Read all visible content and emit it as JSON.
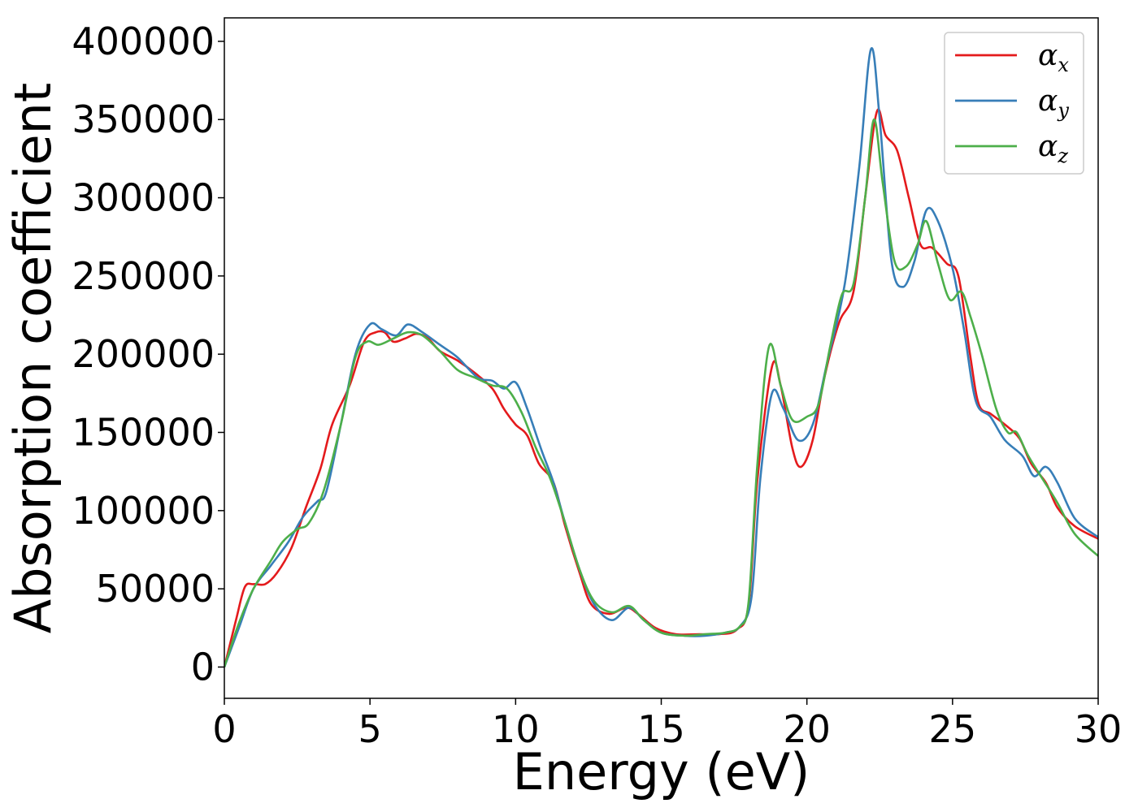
{
  "chart_data": {
    "type": "line",
    "title": "",
    "xlabel": "Energy (eV)",
    "ylabel": "Absorption coefficient",
    "xlim": [
      0,
      30
    ],
    "ylim": [
      -20000,
      415000
    ],
    "xticks": [
      "0",
      "5",
      "10",
      "15",
      "20",
      "25",
      "30"
    ],
    "yticks": [
      "0",
      "50000",
      "100000",
      "150000",
      "200000",
      "250000",
      "300000",
      "350000",
      "400000"
    ],
    "grid": false,
    "legend_position": "top-right",
    "colors": {
      "alpha_x": "#e41a1c",
      "alpha_y": "#377eb8",
      "alpha_z": "#4daf4a"
    },
    "series": [
      {
        "name": "α_x",
        "legend_base": "α",
        "legend_sub": "x",
        "color": "#e41a1c",
        "points": [
          [
            0,
            0
          ],
          [
            0.4,
            30000
          ],
          [
            0.7,
            51000
          ],
          [
            1.0,
            53000
          ],
          [
            1.4,
            53000
          ],
          [
            1.8,
            60000
          ],
          [
            2.3,
            76000
          ],
          [
            2.8,
            102000
          ],
          [
            3.3,
            127000
          ],
          [
            3.7,
            155000
          ],
          [
            4.3,
            180000
          ],
          [
            4.8,
            208000
          ],
          [
            5.2,
            214000
          ],
          [
            5.5,
            214000
          ],
          [
            5.8,
            208000
          ],
          [
            6.2,
            210000
          ],
          [
            6.6,
            213000
          ],
          [
            7.0,
            210000
          ],
          [
            7.4,
            202000
          ],
          [
            8.0,
            196000
          ],
          [
            8.6,
            188000
          ],
          [
            9.2,
            178000
          ],
          [
            9.6,
            165000
          ],
          [
            10.0,
            155000
          ],
          [
            10.4,
            148000
          ],
          [
            10.8,
            130000
          ],
          [
            11.3,
            118000
          ],
          [
            11.7,
            90000
          ],
          [
            12.2,
            60000
          ],
          [
            12.6,
            40000
          ],
          [
            13.2,
            34000
          ],
          [
            13.8,
            38000
          ],
          [
            14.2,
            34000
          ],
          [
            14.8,
            25000
          ],
          [
            15.5,
            21000
          ],
          [
            16.3,
            21000
          ],
          [
            17.0,
            21000
          ],
          [
            17.6,
            24000
          ],
          [
            18.0,
            40000
          ],
          [
            18.3,
            120000
          ],
          [
            18.8,
            192000
          ],
          [
            19.1,
            180000
          ],
          [
            19.5,
            140000
          ],
          [
            19.8,
            128000
          ],
          [
            20.2,
            145000
          ],
          [
            20.6,
            185000
          ],
          [
            21.1,
            220000
          ],
          [
            21.6,
            240000
          ],
          [
            22.0,
            300000
          ],
          [
            22.4,
            355000
          ],
          [
            22.7,
            340000
          ],
          [
            23.1,
            330000
          ],
          [
            23.5,
            300000
          ],
          [
            23.9,
            270000
          ],
          [
            24.3,
            268000
          ],
          [
            24.8,
            258000
          ],
          [
            25.2,
            250000
          ],
          [
            25.6,
            200000
          ],
          [
            25.9,
            168000
          ],
          [
            26.3,
            162000
          ],
          [
            26.8,
            155000
          ],
          [
            27.3,
            146000
          ],
          [
            27.7,
            130000
          ],
          [
            28.2,
            118000
          ],
          [
            28.6,
            102000
          ],
          [
            29.2,
            90000
          ],
          [
            30.0,
            82000
          ]
        ]
      },
      {
        "name": "α_y",
        "legend_base": "α",
        "legend_sub": "y",
        "color": "#377eb8",
        "points": [
          [
            0,
            0
          ],
          [
            0.5,
            25000
          ],
          [
            1.0,
            50000
          ],
          [
            1.6,
            65000
          ],
          [
            2.2,
            80000
          ],
          [
            2.7,
            96000
          ],
          [
            3.2,
            106000
          ],
          [
            3.5,
            112000
          ],
          [
            4.0,
            155000
          ],
          [
            4.5,
            200000
          ],
          [
            5.0,
            219000
          ],
          [
            5.4,
            216000
          ],
          [
            5.9,
            212000
          ],
          [
            6.3,
            219000
          ],
          [
            6.8,
            214000
          ],
          [
            7.4,
            206000
          ],
          [
            8.0,
            198000
          ],
          [
            8.7,
            185000
          ],
          [
            9.2,
            183000
          ],
          [
            9.6,
            178000
          ],
          [
            10.0,
            182000
          ],
          [
            10.4,
            165000
          ],
          [
            10.9,
            138000
          ],
          [
            11.3,
            118000
          ],
          [
            11.7,
            92000
          ],
          [
            12.2,
            62000
          ],
          [
            12.7,
            40000
          ],
          [
            13.3,
            30000
          ],
          [
            13.9,
            38000
          ],
          [
            14.4,
            30000
          ],
          [
            15.0,
            22000
          ],
          [
            15.8,
            20000
          ],
          [
            16.5,
            20000
          ],
          [
            17.2,
            22000
          ],
          [
            17.7,
            26000
          ],
          [
            18.1,
            45000
          ],
          [
            18.4,
            120000
          ],
          [
            18.8,
            175000
          ],
          [
            19.2,
            165000
          ],
          [
            19.7,
            145000
          ],
          [
            20.2,
            155000
          ],
          [
            20.7,
            195000
          ],
          [
            21.3,
            245000
          ],
          [
            21.8,
            320000
          ],
          [
            22.2,
            395000
          ],
          [
            22.5,
            350000
          ],
          [
            22.9,
            260000
          ],
          [
            23.3,
            243000
          ],
          [
            23.7,
            260000
          ],
          [
            24.1,
            292000
          ],
          [
            24.5,
            285000
          ],
          [
            25.0,
            255000
          ],
          [
            25.4,
            215000
          ],
          [
            25.8,
            170000
          ],
          [
            26.3,
            160000
          ],
          [
            26.8,
            145000
          ],
          [
            27.4,
            135000
          ],
          [
            27.8,
            122000
          ],
          [
            28.2,
            128000
          ],
          [
            28.6,
            118000
          ],
          [
            29.2,
            95000
          ],
          [
            30.0,
            83000
          ]
        ]
      },
      {
        "name": "α_z",
        "legend_base": "α",
        "legend_sub": "z",
        "color": "#4daf4a",
        "points": [
          [
            0,
            0
          ],
          [
            0.5,
            28000
          ],
          [
            1.0,
            50000
          ],
          [
            1.6,
            68000
          ],
          [
            2.0,
            80000
          ],
          [
            2.5,
            88000
          ],
          [
            2.9,
            92000
          ],
          [
            3.4,
            112000
          ],
          [
            4.0,
            155000
          ],
          [
            4.5,
            198000
          ],
          [
            4.9,
            208000
          ],
          [
            5.3,
            206000
          ],
          [
            5.8,
            210000
          ],
          [
            6.3,
            214000
          ],
          [
            6.8,
            212000
          ],
          [
            7.4,
            202000
          ],
          [
            8.0,
            190000
          ],
          [
            8.6,
            185000
          ],
          [
            9.2,
            180000
          ],
          [
            9.7,
            178000
          ],
          [
            10.2,
            163000
          ],
          [
            10.7,
            140000
          ],
          [
            11.2,
            120000
          ],
          [
            11.7,
            92000
          ],
          [
            12.2,
            62000
          ],
          [
            12.7,
            42000
          ],
          [
            13.3,
            35000
          ],
          [
            13.9,
            39000
          ],
          [
            14.4,
            30000
          ],
          [
            15.0,
            22000
          ],
          [
            15.8,
            20000
          ],
          [
            16.5,
            21000
          ],
          [
            17.2,
            22000
          ],
          [
            17.7,
            26000
          ],
          [
            18.0,
            42000
          ],
          [
            18.3,
            130000
          ],
          [
            18.7,
            205000
          ],
          [
            19.1,
            180000
          ],
          [
            19.5,
            158000
          ],
          [
            20.0,
            160000
          ],
          [
            20.4,
            168000
          ],
          [
            20.8,
            205000
          ],
          [
            21.2,
            238000
          ],
          [
            21.6,
            245000
          ],
          [
            22.0,
            300000
          ],
          [
            22.3,
            350000
          ],
          [
            22.6,
            310000
          ],
          [
            23.0,
            260000
          ],
          [
            23.4,
            256000
          ],
          [
            23.8,
            270000
          ],
          [
            24.1,
            285000
          ],
          [
            24.5,
            258000
          ],
          [
            24.9,
            235000
          ],
          [
            25.3,
            240000
          ],
          [
            25.6,
            225000
          ],
          [
            26.0,
            200000
          ],
          [
            26.5,
            165000
          ],
          [
            26.9,
            150000
          ],
          [
            27.2,
            150000
          ],
          [
            27.6,
            135000
          ],
          [
            28.1,
            120000
          ],
          [
            28.6,
            105000
          ],
          [
            29.2,
            85000
          ],
          [
            30.0,
            71000
          ]
        ]
      }
    ]
  }
}
